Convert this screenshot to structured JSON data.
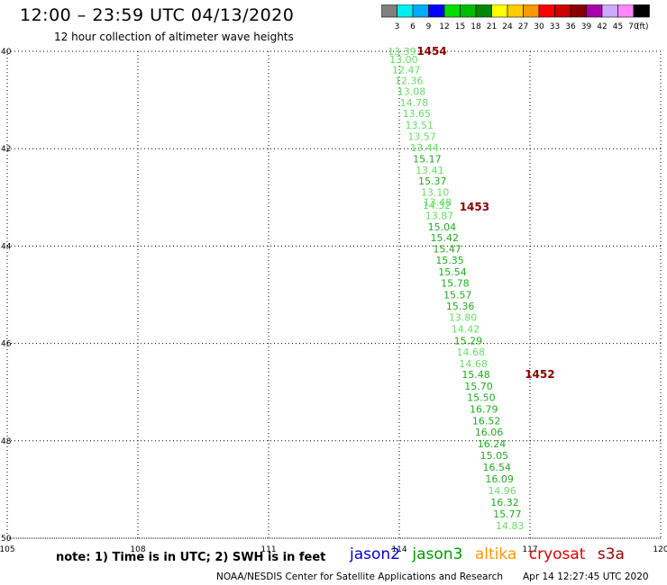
{
  "header": {
    "title": "12:00  –  23:59 UTC 04/13/2020",
    "subtitle": "12 hour collection of altimeter wave heights"
  },
  "colorbar": {
    "unit": "(ft)",
    "ticks": [
      "3",
      "6",
      "9",
      "12",
      "15",
      "18",
      "21",
      "24",
      "27",
      "30",
      "33",
      "36",
      "39",
      "42",
      "45",
      "70"
    ],
    "colors": [
      "#808080",
      "#00eeee",
      "#00aaff",
      "#0000ff",
      "#00dd00",
      "#00bb00",
      "#008800",
      "#ffff00",
      "#ffcc00",
      "#ff9900",
      "#ff0000",
      "#cc0000",
      "#880000",
      "#aa00aa",
      "#ccaaff",
      "#ff88ff",
      "#000000"
    ]
  },
  "footer": {
    "note": "note:  1) Time is in UTC;  2) SWH is in feet",
    "satellites": [
      {
        "name": "jason2",
        "color": "#0000cc"
      },
      {
        "name": "jason3",
        "color": "#009900"
      },
      {
        "name": "altika",
        "color": "#ff9900"
      },
      {
        "name": "cryosat",
        "color": "#dd0000"
      },
      {
        "name": "s3a",
        "color": "#990000"
      }
    ],
    "credit": "NOAA/NESDIS Center for Satellite Applications and Research",
    "timestamp": "Apr 14 12:27:45 UTC 2020"
  },
  "chart_data": {
    "type": "scatter",
    "x_ticks": [
      105,
      108,
      111,
      114,
      117,
      120
    ],
    "y_ticks": [
      -40,
      -42,
      -44,
      -46,
      -48,
      -50
    ],
    "x_tick_labels": [
      "105",
      "108",
      "111",
      "114",
      "117",
      "120"
    ],
    "y_tick_labels": [
      "40",
      "42",
      "44",
      "46",
      "48",
      "50"
    ],
    "xlim": [
      105,
      120
    ],
    "ylim": [
      -50,
      -40
    ],
    "grid": true,
    "series": [
      {
        "name": "jason3",
        "points": [
          {
            "lon": 114.06,
            "lat": -40.0,
            "swh": "13.39",
            "color": "#66dd66"
          },
          {
            "lon": 114.1,
            "lat": -40.17,
            "swh": "13.00",
            "color": "#66dd66"
          },
          {
            "lon": 114.16,
            "lat": -40.38,
            "swh": "12.47",
            "color": "#66dd66"
          },
          {
            "lon": 114.22,
            "lat": -40.6,
            "swh": "12.36",
            "color": "#66dd66"
          },
          {
            "lon": 114.28,
            "lat": -40.82,
            "swh": "13.08",
            "color": "#66dd66"
          },
          {
            "lon": 114.34,
            "lat": -41.05,
            "swh": "14.78",
            "color": "#66dd66"
          },
          {
            "lon": 114.4,
            "lat": -41.28,
            "swh": "13.65",
            "color": "#66dd66"
          },
          {
            "lon": 114.46,
            "lat": -41.52,
            "swh": "13.51",
            "color": "#66dd66"
          },
          {
            "lon": 114.52,
            "lat": -41.75,
            "swh": "13.57",
            "color": "#66dd66"
          },
          {
            "lon": 114.58,
            "lat": -41.98,
            "swh": "13.44",
            "color": "#66dd66"
          },
          {
            "lon": 114.64,
            "lat": -42.21,
            "swh": "15.17",
            "color": "#22aa22"
          },
          {
            "lon": 114.7,
            "lat": -42.44,
            "swh": "13.41",
            "color": "#66dd66"
          },
          {
            "lon": 114.76,
            "lat": -42.66,
            "swh": "15.37",
            "color": "#22aa22"
          },
          {
            "lon": 114.82,
            "lat": -42.89,
            "swh": "13.10",
            "color": "#66dd66"
          },
          {
            "lon": 114.88,
            "lat": -43.1,
            "swh": "13.48",
            "color": "#66dd66"
          },
          {
            "lon": 114.86,
            "lat": -43.16,
            "swh": "14.32",
            "color": "#66dd66"
          },
          {
            "lon": 114.92,
            "lat": -43.37,
            "swh": "13.87",
            "color": "#66dd66"
          },
          {
            "lon": 114.98,
            "lat": -43.6,
            "swh": "15.04",
            "color": "#22aa22"
          },
          {
            "lon": 115.04,
            "lat": -43.83,
            "swh": "15.42",
            "color": "#22aa22"
          },
          {
            "lon": 115.1,
            "lat": -44.06,
            "swh": "15.47",
            "color": "#22aa22"
          },
          {
            "lon": 115.16,
            "lat": -44.29,
            "swh": "15.35",
            "color": "#22aa22"
          },
          {
            "lon": 115.22,
            "lat": -44.53,
            "swh": "15.54",
            "color": "#22aa22"
          },
          {
            "lon": 115.28,
            "lat": -44.76,
            "swh": "15.78",
            "color": "#22aa22"
          },
          {
            "lon": 115.34,
            "lat": -45.0,
            "swh": "15.57",
            "color": "#22aa22"
          },
          {
            "lon": 115.4,
            "lat": -45.23,
            "swh": "15.36",
            "color": "#22aa22"
          },
          {
            "lon": 115.46,
            "lat": -45.46,
            "swh": "13.80",
            "color": "#66dd66"
          },
          {
            "lon": 115.52,
            "lat": -45.7,
            "swh": "14.42",
            "color": "#66dd66"
          },
          {
            "lon": 115.58,
            "lat": -45.94,
            "swh": "15.29",
            "color": "#22aa22"
          },
          {
            "lon": 115.64,
            "lat": -46.17,
            "swh": "14.68",
            "color": "#66dd66"
          },
          {
            "lon": 115.7,
            "lat": -46.41,
            "swh": "14.68",
            "color": "#66dd66"
          },
          {
            "lon": 115.76,
            "lat": -46.64,
            "swh": "15.48",
            "color": "#22aa22"
          },
          {
            "lon": 115.82,
            "lat": -46.88,
            "swh": "15.70",
            "color": "#22aa22"
          },
          {
            "lon": 115.88,
            "lat": -47.11,
            "swh": "15.50",
            "color": "#22aa22"
          },
          {
            "lon": 115.94,
            "lat": -47.35,
            "swh": "16.79",
            "color": "#22aa22"
          },
          {
            "lon": 116.0,
            "lat": -47.59,
            "swh": "16.52",
            "color": "#22aa22"
          },
          {
            "lon": 116.06,
            "lat": -47.82,
            "swh": "16.06",
            "color": "#22aa22"
          },
          {
            "lon": 116.12,
            "lat": -48.06,
            "swh": "16.24",
            "color": "#22aa22"
          },
          {
            "lon": 116.18,
            "lat": -48.3,
            "swh": "15.05",
            "color": "#22aa22"
          },
          {
            "lon": 116.24,
            "lat": -48.54,
            "swh": "16.54",
            "color": "#22aa22"
          },
          {
            "lon": 116.3,
            "lat": -48.78,
            "swh": "16.09",
            "color": "#22aa22"
          },
          {
            "lon": 116.36,
            "lat": -49.02,
            "swh": "14.96",
            "color": "#66dd66"
          },
          {
            "lon": 116.42,
            "lat": -49.26,
            "swh": "16.32",
            "color": "#22aa22"
          },
          {
            "lon": 116.48,
            "lat": -49.5,
            "swh": "15.77",
            "color": "#22aa22"
          },
          {
            "lon": 116.54,
            "lat": -49.74,
            "swh": "14.83",
            "color": "#66dd66"
          }
        ]
      }
    ],
    "time_labels": [
      {
        "lon": 114.4,
        "lat": -40.0,
        "text": "1454",
        "color": "#880000"
      },
      {
        "lon": 115.38,
        "lat": -43.2,
        "text": "1453",
        "color": "#880000"
      },
      {
        "lon": 116.88,
        "lat": -46.64,
        "text": "1452",
        "color": "#880000"
      }
    ]
  }
}
